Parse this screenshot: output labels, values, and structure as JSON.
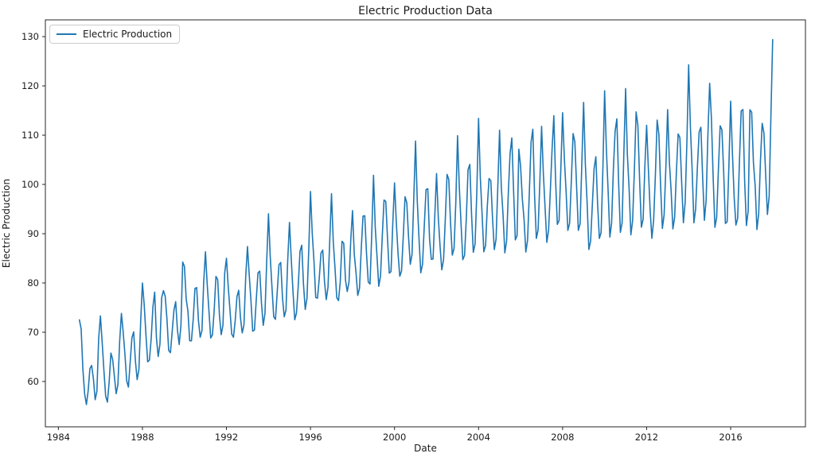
{
  "chart_data": {
    "type": "line",
    "title": "Electric Production Data",
    "xlabel": "Date",
    "ylabel": "Electric Production",
    "legend": [
      {
        "label": "Electric Production",
        "color": "#1f77b4"
      }
    ],
    "legend_position": "upper left",
    "grid": false,
    "x_tick_labels": [
      1984,
      1988,
      1992,
      1996,
      2000,
      2004,
      2008,
      2012,
      2016
    ],
    "y_tick_labels": [
      60,
      70,
      80,
      90,
      100,
      110,
      120,
      130
    ],
    "xlim": [
      1983.38,
      2019.56
    ],
    "ylim": [
      50.8,
      133.4
    ],
    "x_start": "1985-01",
    "x_end": "2018-01",
    "x_frequency": "monthly",
    "n_points": 397,
    "series": [
      {
        "name": "Electric Production",
        "color": "#1f77b4",
        "values": [
          72.51,
          70.67,
          62.45,
          57.47,
          55.32,
          58.09,
          62.62,
          63.25,
          60.58,
          56.32,
          58.0,
          68.71,
          73.31,
          67.99,
          62.22,
          57.03,
          55.81,
          59.9,
          65.77,
          64.48,
          61.0,
          57.53,
          59.34,
          68.14,
          73.82,
          70.06,
          65.61,
          60.16,
          58.87,
          63.89,
          68.87,
          70.07,
          64.12,
          60.38,
          62.46,
          72.14,
          79.99,
          75.65,
          69.54,
          64.0,
          64.36,
          68.67,
          75.18,
          78.14,
          68.89,
          65.07,
          67.57,
          77.01,
          78.44,
          77.33,
          72.76,
          66.32,
          65.85,
          70.16,
          74.48,
          76.19,
          70.45,
          67.51,
          71.36,
          84.24,
          83.34,
          76.76,
          74.25,
          68.27,
          68.26,
          72.62,
          78.87,
          79.05,
          72.36,
          68.99,
          70.31,
          80.18,
          86.32,
          79.74,
          74.31,
          68.84,
          69.48,
          74.53,
          81.33,
          80.67,
          73.42,
          69.51,
          71.43,
          82.02,
          85.01,
          79.3,
          74.57,
          69.62,
          68.99,
          72.36,
          77.23,
          78.51,
          72.94,
          69.87,
          71.49,
          81.31,
          87.4,
          81.66,
          76.37,
          70.21,
          70.47,
          76.47,
          82.05,
          82.4,
          75.96,
          71.39,
          73.8,
          84.47,
          94.05,
          85.43,
          79.13,
          73.13,
          72.62,
          78.17,
          83.7,
          84.16,
          77.0,
          73.13,
          74.51,
          84.67,
          92.3,
          84.96,
          78.3,
          72.53,
          73.91,
          79.41,
          86.4,
          87.66,
          79.71,
          74.62,
          76.93,
          86.54,
          98.56,
          90.08,
          84.41,
          77.04,
          76.91,
          80.92,
          86.06,
          86.67,
          80.33,
          76.62,
          79.11,
          88.62,
          98.13,
          88.47,
          83.03,
          77.01,
          76.42,
          80.23,
          88.47,
          88.04,
          80.54,
          78.27,
          80.19,
          88.7,
          94.7,
          85.87,
          82.07,
          77.47,
          78.93,
          87.0,
          93.57,
          93.65,
          86.02,
          80.2,
          79.79,
          90.02,
          101.86,
          91.27,
          85.36,
          79.33,
          81.4,
          89.47,
          96.83,
          96.55,
          88.99,
          82.0,
          82.31,
          92.04,
          100.31,
          92.46,
          86.03,
          81.36,
          82.42,
          89.47,
          97.5,
          96.28,
          89.4,
          83.79,
          85.8,
          97.19,
          108.81,
          96.63,
          88.89,
          82.07,
          83.8,
          91.64,
          98.96,
          99.13,
          89.0,
          84.8,
          84.86,
          93.59,
          102.21,
          93.33,
          87.51,
          82.66,
          84.7,
          92.96,
          102.04,
          101.0,
          92.16,
          85.65,
          87.0,
          96.34,
          109.9,
          99.47,
          92.0,
          84.73,
          85.6,
          93.08,
          103.0,
          104.05,
          93.92,
          86.22,
          87.91,
          98.27,
          113.4,
          101.43,
          94.09,
          86.32,
          87.61,
          95.59,
          101.2,
          100.74,
          92.99,
          86.78,
          88.9,
          99.65,
          111.01,
          99.42,
          93.75,
          86.12,
          88.47,
          98.29,
          106.27,
          109.44,
          98.85,
          88.75,
          89.63,
          107.16,
          103.74,
          97.11,
          92.83,
          86.28,
          88.7,
          98.31,
          108.62,
          111.2,
          97.79,
          89.04,
          90.76,
          100.38,
          111.8,
          102.3,
          95.26,
          88.24,
          90.73,
          98.72,
          107.2,
          113.95,
          100.77,
          91.9,
          92.67,
          103.17,
          114.55,
          105.33,
          98.62,
          90.67,
          92.09,
          100.74,
          110.32,
          108.65,
          99.58,
          90.68,
          92.02,
          104.42,
          116.65,
          104.1,
          96.39,
          86.8,
          88.5,
          95.97,
          103.25,
          105.63,
          96.0,
          89.05,
          90.22,
          102.99,
          119.02,
          107.22,
          98.7,
          89.32,
          92.19,
          103.0,
          110.82,
          113.31,
          100.45,
          90.27,
          92.22,
          106.47,
          119.45,
          106.06,
          99.08,
          89.76,
          92.66,
          102.85,
          114.71,
          112.0,
          100.83,
          91.32,
          92.92,
          103.74,
          112.0,
          103.14,
          94.79,
          89.07,
          92.7,
          101.87,
          113.06,
          110.17,
          99.59,
          91.06,
          93.86,
          103.61,
          115.18,
          104.51,
          98.71,
          90.97,
          93.33,
          102.53,
          110.25,
          109.5,
          100.56,
          92.22,
          96.29,
          108.58,
          124.27,
          111.76,
          102.96,
          92.21,
          95.05,
          103.52,
          110.66,
          111.6,
          101.4,
          92.71,
          96.9,
          110.1,
          120.52,
          113.51,
          101.44,
          91.3,
          93.3,
          103.0,
          111.9,
          111.1,
          102.63,
          92.07,
          92.43,
          103.9,
          116.9,
          106.44,
          97.42,
          91.75,
          93.12,
          104.52,
          114.9,
          115.2,
          100.59,
          91.66,
          94.61,
          115.16,
          114.66,
          104.49,
          99.71,
          90.85,
          94.0,
          104.63,
          112.4,
          110.46,
          101.96,
          93.9,
          97.58,
          114.01,
          129.4
        ]
      }
    ]
  }
}
